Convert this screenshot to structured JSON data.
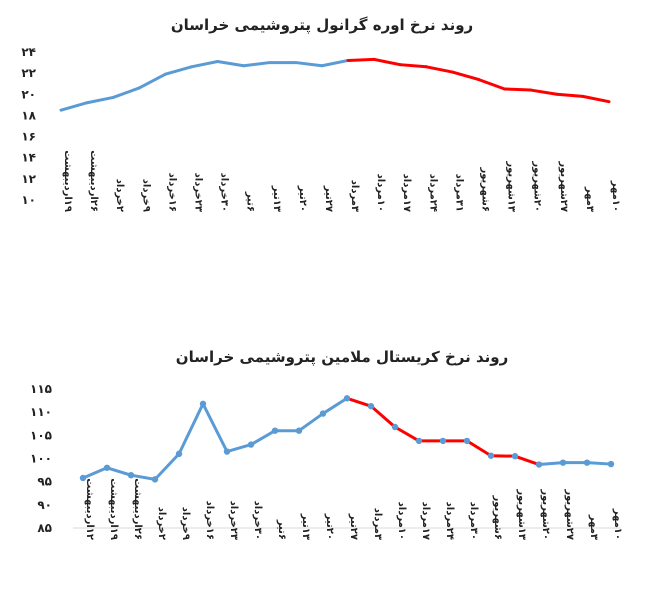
{
  "chart_data": [
    {
      "type": "line",
      "title": "روند نرخ اوره گرانول پتروشیمی خراسان",
      "ylim": [
        10,
        24
      ],
      "yticks": [
        "۲۴",
        "۲۲",
        "۲۰",
        "۱۸",
        "۱۶",
        "۱۴",
        "۱۲",
        "۱۰"
      ],
      "ytick_values": [
        24,
        22,
        20,
        18,
        16,
        14,
        12,
        10
      ],
      "categories": [
        "۱۹اردیبهشت",
        "۲۶اردیبهشت",
        "۲خرداد",
        "۹خرداد",
        "۱۶خرداد",
        "۲۳خرداد",
        "۳۰خرداد",
        "۶تیر",
        "۱۳تیر",
        "۲۰تیر",
        "۲۷تیر",
        "۳مرداد",
        "۱۰مرداد",
        "۱۷مرداد",
        "۲۴مرداد",
        "۳۱مرداد",
        "۶شهریور",
        "۱۳شهریور",
        "۲۰شهریور",
        "۲۷شهریور",
        "۳مهر",
        "۱۰مهر"
      ],
      "values": [
        18.5,
        19.2,
        19.7,
        20.6,
        21.9,
        22.6,
        23.1,
        22.7,
        23.0,
        23.0,
        22.7,
        23.2,
        23.3,
        22.8,
        22.6,
        22.1,
        21.4,
        20.5,
        20.4,
        20.0,
        19.8,
        19.3
      ],
      "series_colors": [
        "#5b9bd5",
        "#ff0000"
      ],
      "color_change_index": 11,
      "markers": false,
      "grid": false,
      "legend": "none"
    },
    {
      "type": "line",
      "title": "روند نرخ کریستال ملامین پتروشیمی خراسان",
      "ylim": [
        85,
        115
      ],
      "yticks": [
        "۱۱۵",
        "۱۱۰",
        "۱۰۵",
        "۱۰۰",
        "۹۵",
        "۹۰",
        "۸۵"
      ],
      "ytick_values": [
        115,
        110,
        105,
        100,
        95,
        90,
        85
      ],
      "categories": [
        "۱۲اردیبهشت",
        "۱۹اردیبهشت",
        "۲۶اردیبهشت",
        "۲خرداد",
        "۹خرداد",
        "۱۶خرداد",
        "۲۳خرداد",
        "۳۰خرداد",
        "۶تیر",
        "۱۳تیر",
        "۲۰تیر",
        "۲۷تیر",
        "۳مرداد",
        "۱۰مرداد",
        "۱۷مرداد",
        "۲۴مرداد",
        "۳۰مرداد",
        "۶شهریور",
        "۱۳شهریور",
        "۲۰شهریور",
        "۲۷شهریور",
        "۳مهر",
        "۱۰مهر"
      ],
      "values": [
        95.8,
        98.0,
        96.4,
        95.5,
        101.0,
        111.8,
        101.5,
        103.0,
        106.0,
        106.0,
        109.7,
        113.0,
        111.3,
        106.8,
        103.8,
        103.8,
        103.8,
        100.6,
        100.5,
        98.7,
        99.1,
        99.1,
        98.8
      ],
      "series_colors": [
        "#5b9bd5",
        "#ff0000"
      ],
      "color_change_index": 11,
      "red_end_index": 19,
      "markers": true,
      "grid": false,
      "legend": "none"
    }
  ]
}
